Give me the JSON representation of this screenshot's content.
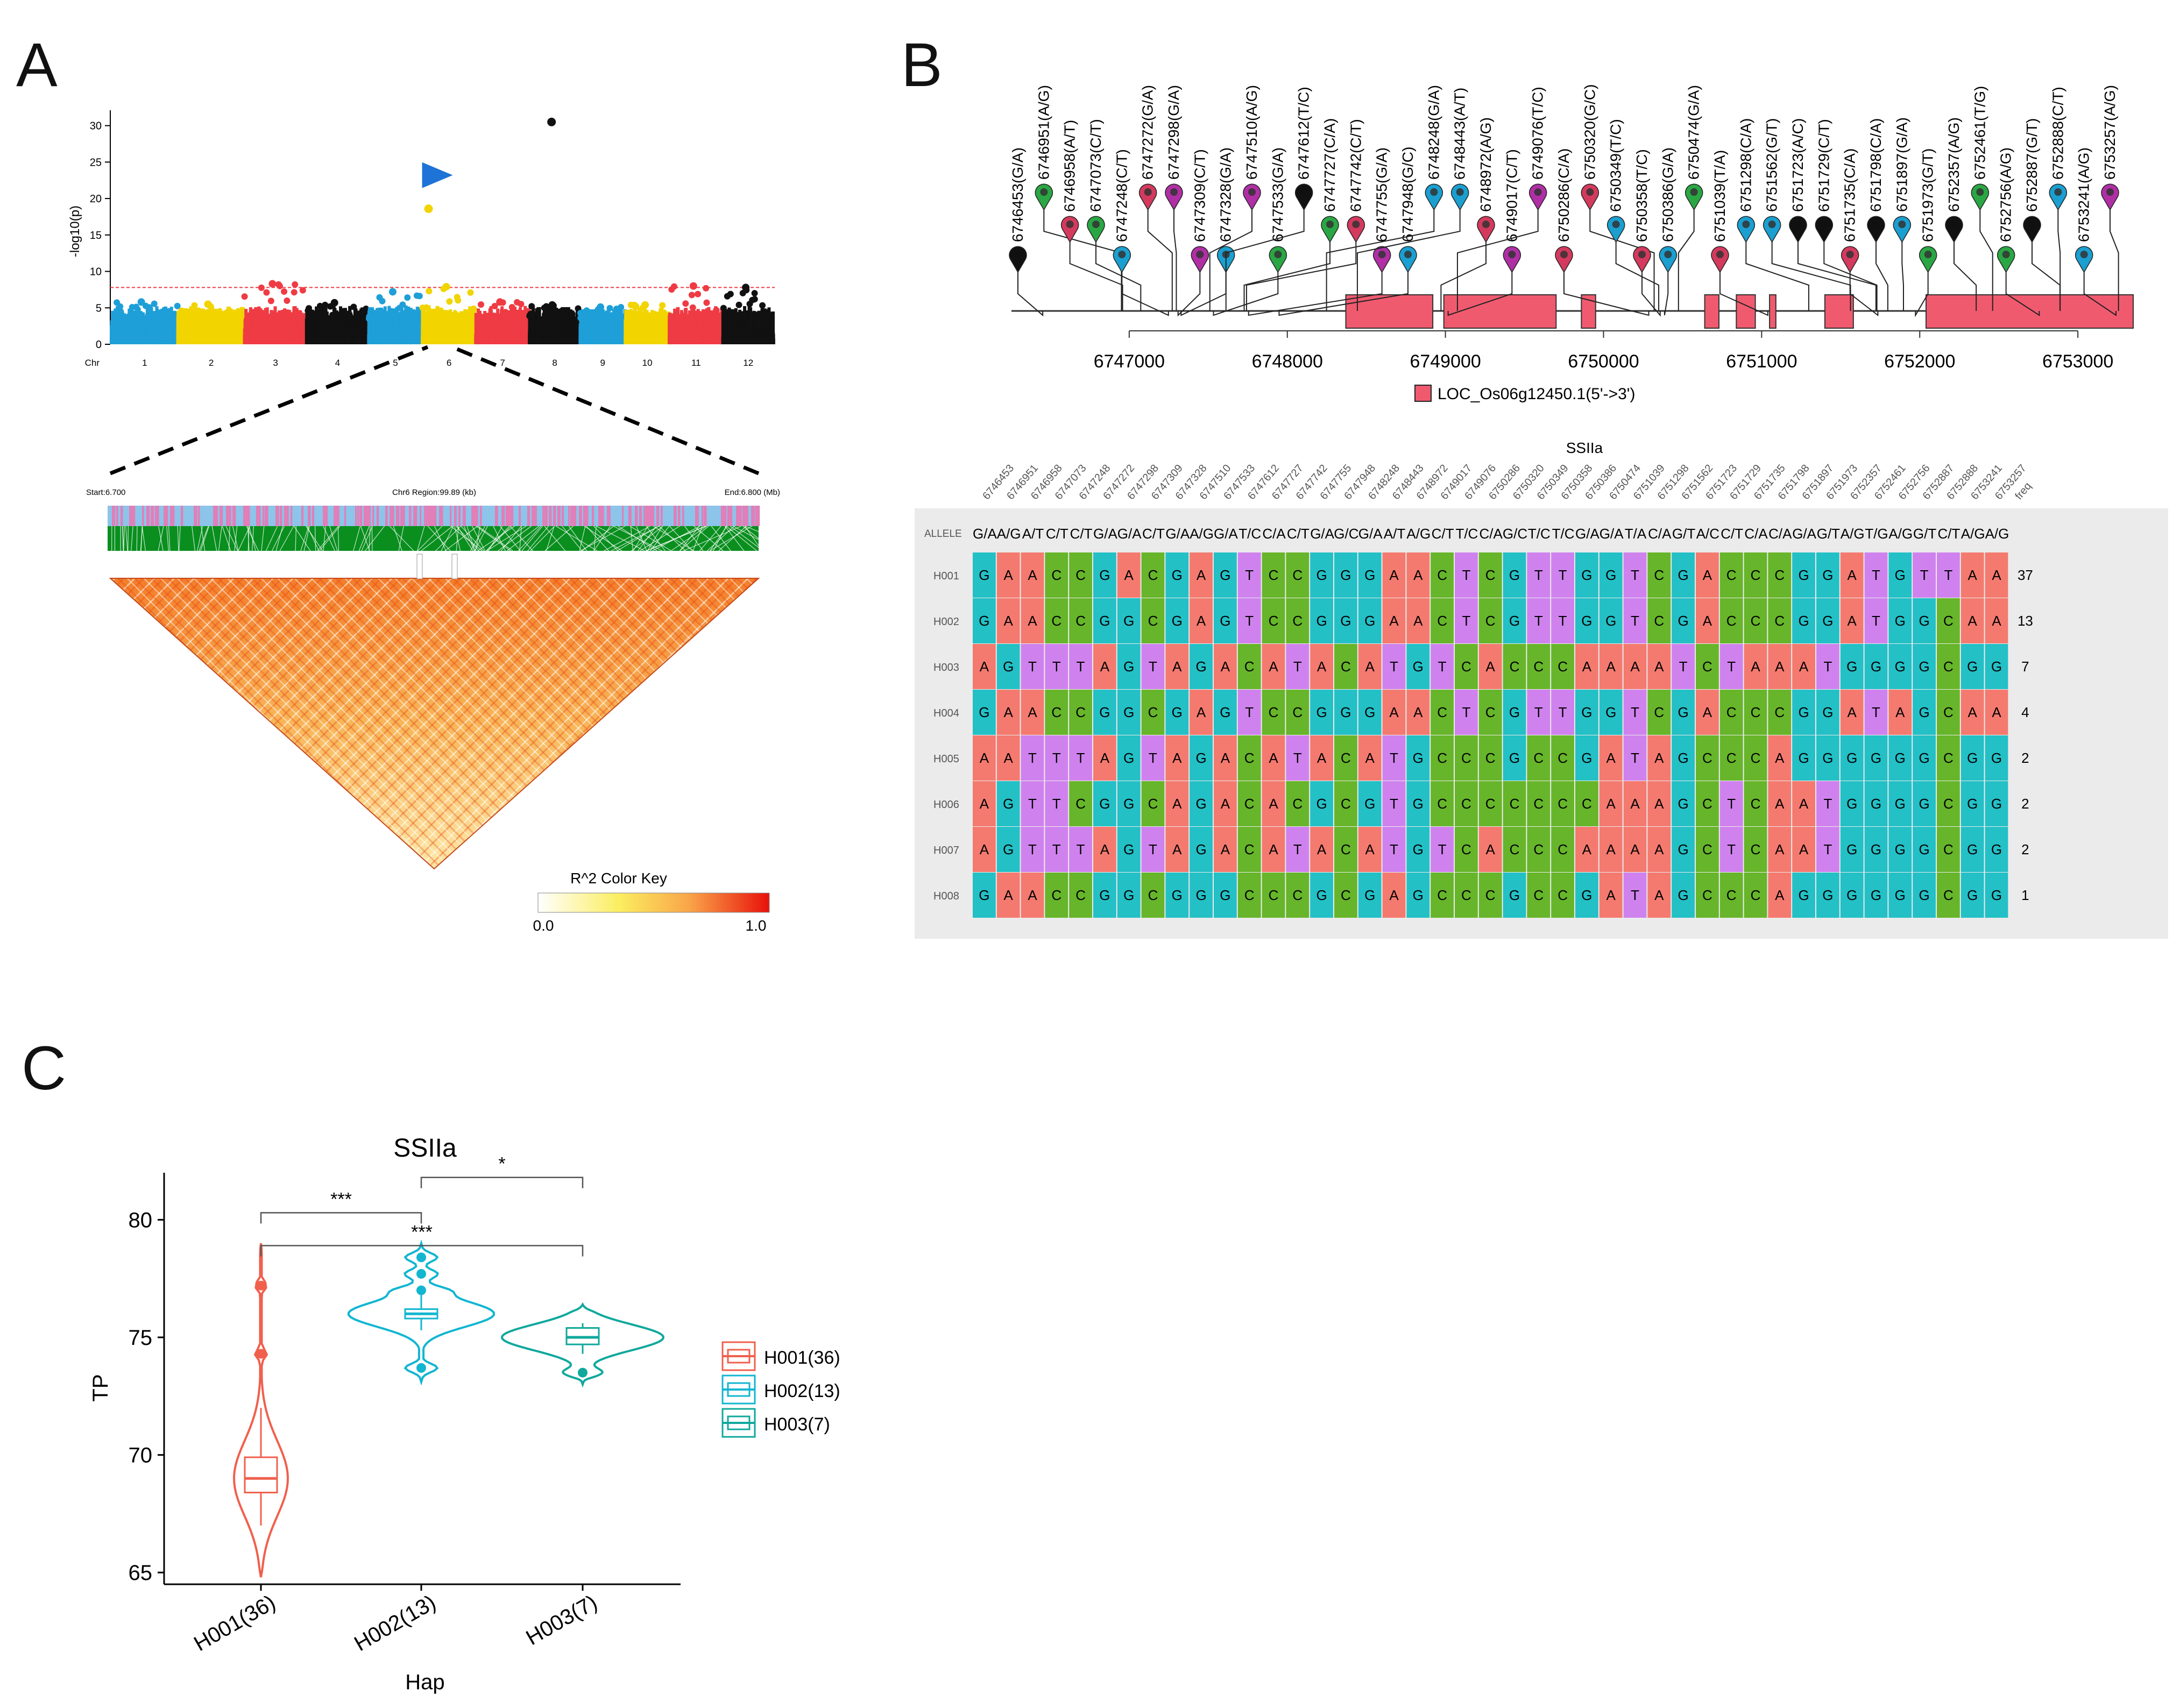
{
  "panels": {
    "a": "A",
    "b": "B",
    "c": "C"
  },
  "chart_data": [
    {
      "type": "scatter",
      "panel": "A",
      "ylabel": "-log10(p)",
      "ylim": [
        0,
        31
      ],
      "yticks": [
        0,
        5,
        10,
        15,
        20,
        25,
        30
      ],
      "xlabel": "Chr",
      "categories": [
        "1",
        "2",
        "3",
        "4",
        "5",
        "6",
        "7",
        "8",
        "9",
        "10",
        "11",
        "12"
      ],
      "threshold": 7.8,
      "point_colors": [
        "#1f9fd8",
        "#f1d400",
        "#ef3b44",
        "#111111",
        "#1f9fd8",
        "#f1d400",
        "#ef3b44",
        "#111111",
        "#1f9fd8",
        "#f1d400",
        "#ef3b44",
        "#111111"
      ],
      "chr_max": [
        5.8,
        5.5,
        8.3,
        5.7,
        7.2,
        7.9,
        5.8,
        5.4,
        5.1,
        5.4,
        8.0,
        7.8
      ],
      "highlight_points": [
        {
          "chr": "8",
          "y": 30.5,
          "color": "#111111"
        },
        {
          "chr": "6",
          "y": 18.6,
          "color": "#f1d400"
        }
      ],
      "arrow_color": "#1e73d6",
      "ld_region": {
        "start": "Start:6.700",
        "middle": "Chr6 Region:99.89 (kb)",
        "end": "End:6.800 (Mb)"
      },
      "color_key": {
        "title": "R^2 Color Key",
        "min": "0.0",
        "max": "1.0"
      }
    },
    {
      "type": "table",
      "panel": "B",
      "gene_axis_ticks": [
        6747000,
        6748000,
        6749000,
        6750000,
        6751000,
        6752000,
        6753000
      ],
      "gene_legend": "LOC_Os06g12450.1(5'->3')",
      "exons": [
        [
          6748370,
          6748920
        ],
        [
          6748990,
          6749700
        ],
        [
          6749860,
          6749950
        ],
        [
          6750640,
          6750730
        ],
        [
          6750840,
          6750960
        ],
        [
          6751050,
          6751090
        ],
        [
          6751400,
          6751580
        ],
        [
          6752040,
          6753350
        ]
      ],
      "snps": [
        {
          "pos": 6746453,
          "label": "6746453(G/A)",
          "color": "#111111"
        },
        {
          "pos": 6746951,
          "label": "6746951(A/G)",
          "color": "#2aa744"
        },
        {
          "pos": 6746958,
          "label": "6746958(A/T)",
          "color": "#d33a5e"
        },
        {
          "pos": 6747073,
          "label": "6747073(C/T)",
          "color": "#2aa744"
        },
        {
          "pos": 6747248,
          "label": "6747248(C/T)",
          "color": "#1a9fd0"
        },
        {
          "pos": 6747272,
          "label": "6747272(G/A)",
          "color": "#d33a5e"
        },
        {
          "pos": 6747298,
          "label": "6747298(G/A)",
          "color": "#b02fa5"
        },
        {
          "pos": 6747309,
          "label": "6747309(C/T)",
          "color": "#b02fa5"
        },
        {
          "pos": 6747328,
          "label": "6747328(G/A)",
          "color": "#1a9fd0"
        },
        {
          "pos": 6747510,
          "label": "6747510(A/G)",
          "color": "#b02fa5"
        },
        {
          "pos": 6747533,
          "label": "6747533(G/A)",
          "color": "#2aa744"
        },
        {
          "pos": 6747612,
          "label": "6747612(T/C)",
          "color": "#111111"
        },
        {
          "pos": 6747727,
          "label": "6747727(C/A)",
          "color": "#2aa744"
        },
        {
          "pos": 6747742,
          "label": "6747742(C/T)",
          "color": "#d33a5e"
        },
        {
          "pos": 6747755,
          "label": "6747755(G/A)",
          "color": "#b02fa5"
        },
        {
          "pos": 6747948,
          "label": "6747948(G/C)",
          "color": "#1a9fd0"
        },
        {
          "pos": 6748248,
          "label": "6748248(G/A)",
          "color": "#1a9fd0"
        },
        {
          "pos": 6748443,
          "label": "6748443(A/T)",
          "color": "#1a9fd0"
        },
        {
          "pos": 6748972,
          "label": "6748972(A/G)",
          "color": "#d33a5e"
        },
        {
          "pos": 6749017,
          "label": "6749017(C/T)",
          "color": "#b02fa5"
        },
        {
          "pos": 6749076,
          "label": "6749076(T/C)",
          "color": "#b02fa5"
        },
        {
          "pos": 6750286,
          "label": "6750286(C/A)",
          "color": "#d33a5e"
        },
        {
          "pos": 6750320,
          "label": "6750320(G/C)",
          "color": "#d33a5e"
        },
        {
          "pos": 6750349,
          "label": "6750349(T/C)",
          "color": "#1a9fd0"
        },
        {
          "pos": 6750358,
          "label": "6750358(T/C)",
          "color": "#d33a5e"
        },
        {
          "pos": 6750386,
          "label": "6750386(G/A)",
          "color": "#1a9fd0"
        },
        {
          "pos": 6750474,
          "label": "6750474(G/A)",
          "color": "#2aa744"
        },
        {
          "pos": 6751039,
          "label": "6751039(T/A)",
          "color": "#d33a5e"
        },
        {
          "pos": 6751298,
          "label": "6751298(C/A)",
          "color": "#1a9fd0"
        },
        {
          "pos": 6751562,
          "label": "6751562(G/T)",
          "color": "#1a9fd0"
        },
        {
          "pos": 6751723,
          "label": "6751723(A/C)",
          "color": "#111111"
        },
        {
          "pos": 6751729,
          "label": "6751729(C/T)",
          "color": "#111111"
        },
        {
          "pos": 6751735,
          "label": "6751735(C/A)",
          "color": "#d33a5e"
        },
        {
          "pos": 6751798,
          "label": "6751798(C/A)",
          "color": "#111111"
        },
        {
          "pos": 6751897,
          "label": "6751897(G/A)",
          "color": "#1a9fd0"
        },
        {
          "pos": 6751973,
          "label": "6751973(G/T)",
          "color": "#2aa744"
        },
        {
          "pos": 6752357,
          "label": "6752357(A/G)",
          "color": "#111111"
        },
        {
          "pos": 6752461,
          "label": "6752461(T/G)",
          "color": "#2aa744"
        },
        {
          "pos": 6752756,
          "label": "6752756(A/G)",
          "color": "#2aa744"
        },
        {
          "pos": 6752887,
          "label": "6752887(G/T)",
          "color": "#111111"
        },
        {
          "pos": 6752888,
          "label": "6752888(C/T)",
          "color": "#1a9fd0"
        },
        {
          "pos": 6753241,
          "label": "6753241(A/G)",
          "color": "#1a9fd0"
        },
        {
          "pos": 6753257,
          "label": "6753257(A/G)",
          "color": "#b02fa5"
        }
      ],
      "hap_table": {
        "title": "SSIIa",
        "positions": [
          "6746453",
          "6746951",
          "6746958",
          "6747073",
          "6747248",
          "6747272",
          "6747298",
          "6747309",
          "6747328",
          "6747510",
          "6747533",
          "6747612",
          "6747727",
          "6747742",
          "6747755",
          "6747948",
          "6748248",
          "6748443",
          "6748972",
          "6749017",
          "6749076",
          "6750286",
          "6750320",
          "6750349",
          "6750358",
          "6750386",
          "6750474",
          "6751039",
          "6751298",
          "6751562",
          "6751723",
          "6751729",
          "6751735",
          "6751798",
          "6751897",
          "6751973",
          "6752357",
          "6752461",
          "6752756",
          "6752887",
          "6752888",
          "6753241",
          "6753257"
        ],
        "freq_header": "freq",
        "allele_label": "ALLELE",
        "alleles": [
          "G/A",
          "A/G",
          "A/T",
          "C/T",
          "C/T",
          "G/A",
          "G/A",
          "C/T",
          "G/A",
          "A/G",
          "G/A",
          "T/C",
          "C/A",
          "C/T",
          "G/A",
          "G/C",
          "G/A",
          "A/T",
          "A/G",
          "C/T",
          "T/C",
          "C/A",
          "G/C",
          "T/C",
          "T/C",
          "G/A",
          "G/A",
          "T/A",
          "C/A",
          "G/T",
          "A/C",
          "C/T",
          "C/A",
          "C/A",
          "G/A",
          "G/T",
          "A/G",
          "T/G",
          "A/G",
          "G/T",
          "C/T",
          "A/G",
          "A/G"
        ],
        "rows": [
          {
            "name": "H001",
            "seq": "GAACCGACGAGTCCGGGAACTCGTTGGTCGACCCGGATGTTAA",
            "freq": "37"
          },
          {
            "name": "H002",
            "seq": "GAACCGGCGAGTCCGGGAACTCGTTGGTCGACCCGGATGGCAA",
            "freq": "13"
          },
          {
            "name": "H003",
            "seq": "AGTTTAGTAGACATACATGTCACCCAAAATCTAAATGGGGCGG",
            "freq": "7"
          },
          {
            "name": "H004",
            "seq": "GAACCGGCGAGTCCGGGAACTCGTTGGTCGACCCGGATAGCAA",
            "freq": "4"
          },
          {
            "name": "H005",
            "seq": "AATTTAGTAGACATACATGCCCGCCGATAGCCCAGGGGGGCGG",
            "freq": "2"
          },
          {
            "name": "H006",
            "seq": "AGTTCGGCAGACACGCGTGCCCCCCCAAAGCTCAATGGGGCGG",
            "freq": "2"
          },
          {
            "name": "H007",
            "seq": "AGTTTAGTAGACATACATGTCACCCAAAAGCTCAATGGGGCGG",
            "freq": "2"
          },
          {
            "name": "H008",
            "seq": "GAACCGGCGGGCCCGCGAGCCCGCCGATAGCCCAGGGGGGCGG",
            "freq": "1"
          }
        ],
        "base_colors": {
          "A": "#f47a6f",
          "C": "#67b52a",
          "G": "#23c0c6",
          "T": "#cf82ee"
        }
      }
    },
    {
      "type": "violin",
      "panel": "C",
      "title": "SSIIa",
      "xlabel": "Hap",
      "ylabel": "TP",
      "ylim": [
        64.5,
        82
      ],
      "yticks": [
        65,
        70,
        75,
        80
      ],
      "categories": [
        "H001(36)",
        "H002(13)",
        "H003(7)"
      ],
      "series": [
        {
          "name": "H001(36)",
          "color": "#f0604d",
          "q1": 68.4,
          "median": 69.0,
          "q3": 69.9,
          "whisker_low": 67.0,
          "whisker_high": 72.0,
          "vmin": 64.8,
          "vmax": 79.0,
          "outliers": [
            74.3,
            77.2
          ]
        },
        {
          "name": "H002(13)",
          "color": "#12b6d1",
          "q1": 75.8,
          "median": 76.0,
          "q3": 76.2,
          "whisker_low": 75.3,
          "whisker_high": 76.9,
          "vmin": 73.1,
          "vmax": 79.0,
          "outliers": [
            73.7,
            77.0,
            77.7,
            78.4
          ]
        },
        {
          "name": "H003(7)",
          "color": "#10a89d",
          "q1": 74.7,
          "median": 75.0,
          "q3": 75.4,
          "whisker_low": 74.3,
          "whisker_high": 75.6,
          "vmin": 73.0,
          "vmax": 76.4,
          "outliers": [
            73.5
          ]
        }
      ],
      "significance": [
        {
          "from": 0,
          "to": 1,
          "label": "***",
          "y": 80.3
        },
        {
          "from": 1,
          "to": 2,
          "label": "*",
          "y": 81.8
        },
        {
          "from": 0,
          "to": 2,
          "label": "***",
          "y": 78.9
        }
      ]
    }
  ]
}
